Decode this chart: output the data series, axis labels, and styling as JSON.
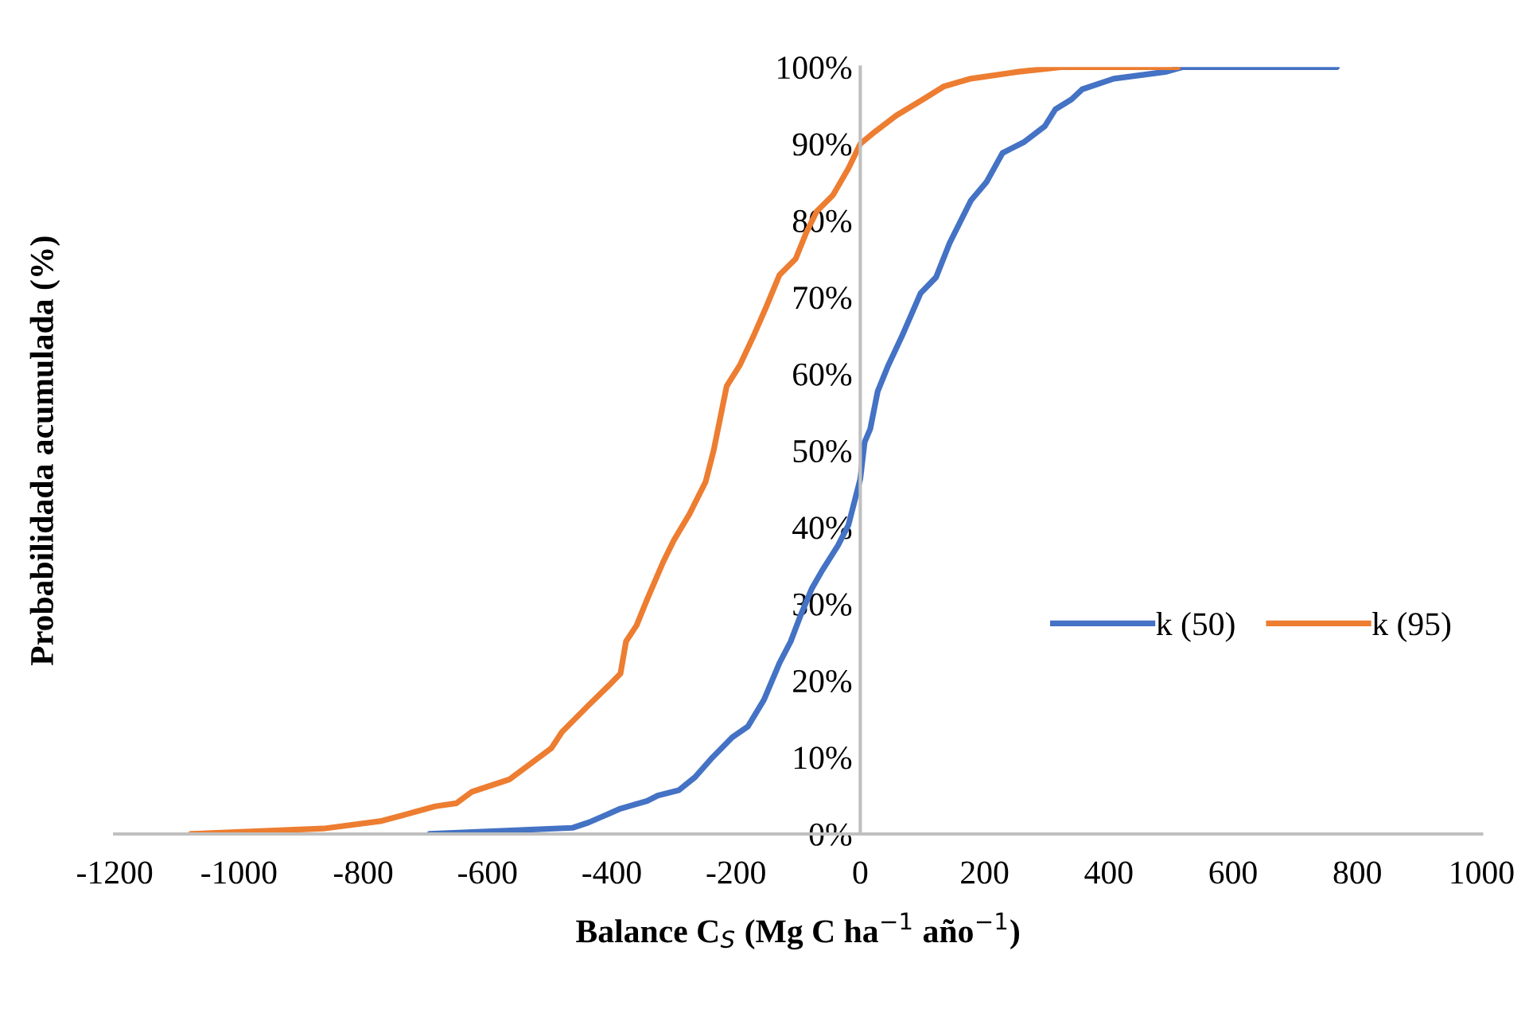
{
  "chart_data": {
    "type": "line",
    "xlabel": "Balance C$_{S}$ (Mg C ha$^{−1}$ año$^{−1}$)",
    "ylabel": "Probabilidada acumulada (%)",
    "xlim": [
      -1200,
      1000
    ],
    "xticks": [
      -1200,
      -1000,
      -800,
      -600,
      -400,
      -200,
      0,
      200,
      400,
      600,
      800,
      1000
    ],
    "ylim": [
      0,
      100
    ],
    "yticks": [
      {
        "value": 0,
        "label": "0%"
      },
      {
        "value": 10,
        "label": "10%"
      },
      {
        "value": 20,
        "label": "20%"
      },
      {
        "value": 30,
        "label": "30%"
      },
      {
        "value": 40,
        "label": "40%"
      },
      {
        "value": 50,
        "label": "50%"
      },
      {
        "value": 60,
        "label": "60%"
      },
      {
        "value": 70,
        "label": "70%"
      },
      {
        "value": 80,
        "label": "80%"
      },
      {
        "value": 90,
        "label": "90%"
      },
      {
        "value": 100,
        "label": "100%"
      }
    ],
    "grid": false,
    "legend": "right",
    "marker": "none",
    "line_style": "solid",
    "series": [
      {
        "name": "k (50)",
        "color": "#4472c4",
        "x": [
          -693,
          -463,
          -437,
          -386,
          -343,
          -326,
          -292,
          -266,
          -240,
          -206,
          -181,
          -155,
          -130,
          -112,
          -96,
          -78,
          -61,
          -36,
          -19,
          0,
          7,
          16,
          28,
          45,
          67,
          97,
          122,
          144,
          178,
          203,
          229,
          263,
          297,
          314,
          340,
          357,
          408,
          493,
          519,
          767
        ],
        "values": [
          0,
          0.8,
          1.5,
          3.3,
          4.3,
          5.0,
          5.7,
          7.4,
          9.8,
          12.6,
          14.0,
          17.5,
          22.3,
          25.1,
          28.5,
          32.0,
          34.4,
          37.6,
          40.3,
          46.3,
          51.1,
          52.8,
          57.7,
          61.1,
          64.9,
          70.5,
          72.6,
          77.1,
          82.6,
          85.0,
          88.8,
          90.2,
          92.3,
          94.5,
          95.8,
          97.1,
          98.5,
          99.4,
          100,
          100
        ]
      },
      {
        "name": "k (95)",
        "color": "#ed7d31",
        "x": [
          -1077,
          -864,
          -770,
          -684,
          -650,
          -625,
          -565,
          -497,
          -480,
          -437,
          -403,
          -386,
          -377,
          -360,
          -343,
          -317,
          -300,
          -275,
          -249,
          -236,
          -215,
          -194,
          -172,
          -151,
          -130,
          -104,
          -87,
          -70,
          -44,
          -19,
          0,
          24,
          58,
          101,
          135,
          178,
          255,
          323,
          511
        ],
        "values": [
          0,
          0.7,
          1.7,
          3.6,
          4.0,
          5.5,
          7.1,
          11.2,
          13.3,
          16.8,
          19.5,
          20.9,
          25.1,
          27.2,
          30.6,
          35.5,
          38.3,
          41.7,
          45.9,
          50.0,
          58.4,
          61.1,
          64.9,
          68.8,
          72.9,
          75.0,
          78.4,
          81.2,
          83.3,
          86.8,
          90.0,
          91.6,
          93.7,
          95.8,
          97.5,
          98.5,
          99.4,
          100,
          100
        ]
      }
    ]
  }
}
